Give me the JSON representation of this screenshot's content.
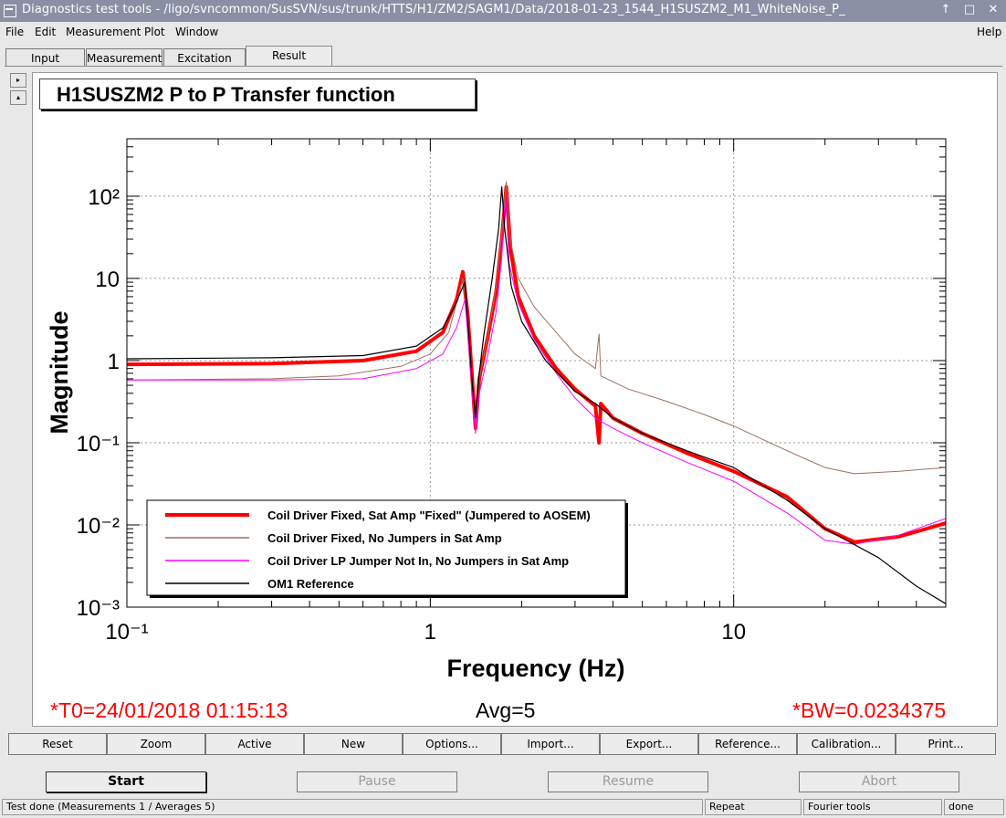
{
  "window": {
    "title": "Diagnostics test tools - /ligo/svncommon/SusSVN/sus/trunk/HTTS/H1/ZM2/SAGM1/Data/2018-01-23_1544_H1SUSZM2_M1_WhiteNoise_P_",
    "controls": [
      "↑",
      "□",
      "✕"
    ]
  },
  "menu": {
    "items": [
      "File",
      "Edit",
      "Measurement",
      "Plot",
      "Window"
    ],
    "help": "Help"
  },
  "tabs": [
    "Input",
    "Measurement",
    "Excitation",
    "Result"
  ],
  "active_tab": "Result",
  "side_buttons": [
    "▸",
    "▴"
  ],
  "plot": {
    "title": "H1SUSZM2 P to P Transfer function",
    "t0": "*T0=24/01/2018 01:15:13",
    "avg": "Avg=5",
    "bw": "*BW=0.0234375"
  },
  "chart_data": {
    "type": "line",
    "title": "H1SUSZM2 P to P Transfer function",
    "xlabel": "Frequency (Hz)",
    "ylabel": "Magnitude",
    "xscale": "log",
    "yscale": "log",
    "xlim": [
      0.1,
      50
    ],
    "ylim": [
      0.001,
      500
    ],
    "x_ticks": [
      "10⁻¹",
      "1",
      "10"
    ],
    "y_ticks": [
      "10⁻³",
      "10⁻²",
      "10⁻¹",
      "1",
      "10",
      "10²"
    ],
    "grid": true,
    "legend_position": "bottom-left",
    "series": [
      {
        "name": "Coil Driver Fixed, Sat Amp \"Fixed\" (Jumpered to AOSEM)",
        "color": "#ff0000",
        "width": 4,
        "points": [
          [
            0.1,
            0.9
          ],
          [
            0.3,
            0.92
          ],
          [
            0.6,
            1.0
          ],
          [
            0.9,
            1.3
          ],
          [
            1.1,
            2.2
          ],
          [
            1.22,
            5.5
          ],
          [
            1.28,
            12
          ],
          [
            1.33,
            3.5
          ],
          [
            1.38,
            0.5
          ],
          [
            1.41,
            0.15
          ],
          [
            1.45,
            0.6
          ],
          [
            1.55,
            2
          ],
          [
            1.65,
            7
          ],
          [
            1.72,
            30
          ],
          [
            1.78,
            130
          ],
          [
            1.84,
            22
          ],
          [
            1.95,
            6
          ],
          [
            2.2,
            2
          ],
          [
            2.6,
            0.8
          ],
          [
            3.0,
            0.45
          ],
          [
            3.5,
            0.28
          ],
          [
            3.6,
            0.1
          ],
          [
            3.65,
            0.3
          ],
          [
            4.0,
            0.2
          ],
          [
            5,
            0.13
          ],
          [
            7,
            0.075
          ],
          [
            10,
            0.045
          ],
          [
            15,
            0.022
          ],
          [
            20,
            0.009
          ],
          [
            25,
            0.0062
          ],
          [
            35,
            0.0072
          ],
          [
            50,
            0.0105
          ]
        ]
      },
      {
        "name": "Coil Driver Fixed, No Jumpers in Sat Amp",
        "color": "#9c7060",
        "width": 1,
        "points": [
          [
            0.1,
            0.58
          ],
          [
            0.3,
            0.6
          ],
          [
            0.5,
            0.65
          ],
          [
            0.8,
            0.85
          ],
          [
            1.0,
            1.2
          ],
          [
            1.15,
            2.2
          ],
          [
            1.22,
            5
          ],
          [
            1.28,
            10
          ],
          [
            1.33,
            3
          ],
          [
            1.38,
            0.4
          ],
          [
            1.41,
            0.15
          ],
          [
            1.45,
            0.6
          ],
          [
            1.55,
            2
          ],
          [
            1.65,
            8
          ],
          [
            1.72,
            35
          ],
          [
            1.78,
            150
          ],
          [
            1.84,
            28
          ],
          [
            1.95,
            10
          ],
          [
            2.2,
            4.5
          ],
          [
            2.6,
            2.2
          ],
          [
            3.0,
            1.2
          ],
          [
            3.5,
            0.8
          ],
          [
            3.6,
            2.1
          ],
          [
            3.65,
            0.65
          ],
          [
            4.5,
            0.45
          ],
          [
            6,
            0.32
          ],
          [
            8,
            0.22
          ],
          [
            10,
            0.16
          ],
          [
            15,
            0.08
          ],
          [
            20,
            0.05
          ],
          [
            25,
            0.042
          ],
          [
            35,
            0.045
          ],
          [
            50,
            0.05
          ]
        ]
      },
      {
        "name": "Coil Driver LP Jumper Not In, No Jumpers in Sat Amp",
        "color": "#ff00ff",
        "width": 1,
        "points": [
          [
            0.1,
            0.58
          ],
          [
            0.3,
            0.58
          ],
          [
            0.6,
            0.6
          ],
          [
            0.9,
            0.8
          ],
          [
            1.1,
            1.2
          ],
          [
            1.22,
            2.5
          ],
          [
            1.3,
            5.5
          ],
          [
            1.34,
            1.5
          ],
          [
            1.38,
            0.35
          ],
          [
            1.41,
            0.13
          ],
          [
            1.45,
            0.4
          ],
          [
            1.55,
            1.2
          ],
          [
            1.65,
            4
          ],
          [
            1.72,
            18
          ],
          [
            1.77,
            100
          ],
          [
            1.82,
            15
          ],
          [
            1.95,
            5
          ],
          [
            2.2,
            1.8
          ],
          [
            2.6,
            0.7
          ],
          [
            3.0,
            0.35
          ],
          [
            3.5,
            0.2
          ],
          [
            4.0,
            0.15
          ],
          [
            5,
            0.1
          ],
          [
            7,
            0.058
          ],
          [
            10,
            0.034
          ],
          [
            15,
            0.014
          ],
          [
            20,
            0.0065
          ],
          [
            25,
            0.0058
          ],
          [
            35,
            0.0075
          ],
          [
            50,
            0.012
          ]
        ]
      },
      {
        "name": "OM1 Reference",
        "color": "#000000",
        "width": 1.2,
        "points": [
          [
            0.1,
            1.05
          ],
          [
            0.3,
            1.08
          ],
          [
            0.6,
            1.15
          ],
          [
            0.9,
            1.5
          ],
          [
            1.1,
            2.5
          ],
          [
            1.2,
            4.5
          ],
          [
            1.3,
            9
          ],
          [
            1.34,
            2
          ],
          [
            1.38,
            0.45
          ],
          [
            1.41,
            0.2
          ],
          [
            1.45,
            0.7
          ],
          [
            1.5,
            2
          ],
          [
            1.6,
            10
          ],
          [
            1.68,
            40
          ],
          [
            1.72,
            130
          ],
          [
            1.76,
            40
          ],
          [
            1.85,
            8
          ],
          [
            2.0,
            3
          ],
          [
            2.4,
            1
          ],
          [
            3.0,
            0.42
          ],
          [
            3.5,
            0.3
          ],
          [
            4,
            0.2
          ],
          [
            5,
            0.13
          ],
          [
            7,
            0.08
          ],
          [
            10,
            0.05
          ],
          [
            15,
            0.02
          ],
          [
            20,
            0.009
          ],
          [
            30,
            0.004
          ],
          [
            40,
            0.0018
          ],
          [
            50,
            0.0011
          ]
        ]
      }
    ]
  },
  "plot_buttons": [
    "Reset",
    "Zoom",
    "Active",
    "New",
    "Options...",
    "Import...",
    "Export...",
    "Reference...",
    "Calibration...",
    "Print..."
  ],
  "controls": {
    "start": "Start",
    "pause": "Pause",
    "resume": "Resume",
    "abort": "Abort"
  },
  "status": {
    "main": "Test done (Measurements 1 / Averages 5)",
    "mode": "Repeat",
    "tool": "Fourier tools",
    "state": "done"
  }
}
